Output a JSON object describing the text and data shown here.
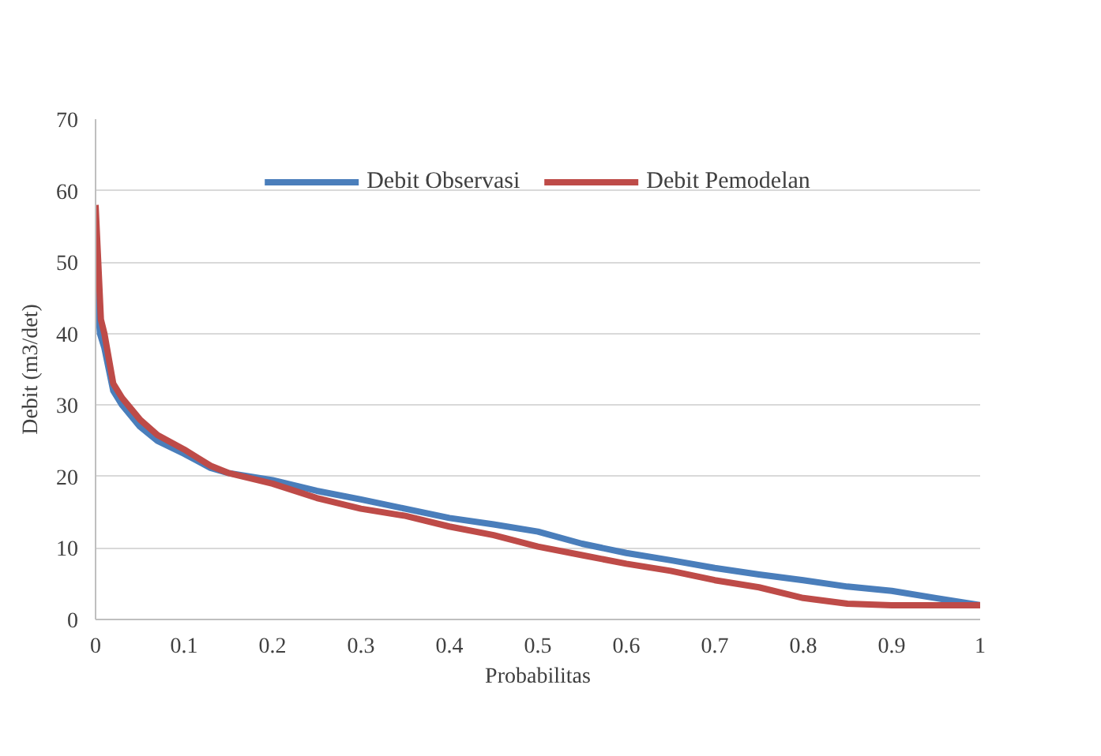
{
  "chart_data": {
    "type": "line",
    "xlabel": "Probabilitas",
    "ylabel": "Debit (m3/det)",
    "xlim": [
      0,
      1
    ],
    "xticks": [
      0,
      0.1,
      0.2,
      0.3,
      0.4,
      0.5,
      0.6,
      0.7,
      0.8,
      0.9,
      1
    ],
    "ylim": [
      0,
      70
    ],
    "yticks": [
      0,
      10,
      20,
      30,
      40,
      50,
      60,
      70
    ],
    "grid": "y",
    "legend": "top",
    "marker": "none",
    "line_style": "solid",
    "series": [
      {
        "name": "Debit Observasi",
        "color": "#4a7ebb",
        "x": [
          0,
          0.002,
          0.005,
          0.01,
          0.02,
          0.03,
          0.05,
          0.07,
          0.1,
          0.13,
          0.15,
          0.2,
          0.25,
          0.3,
          0.35,
          0.4,
          0.45,
          0.5,
          0.55,
          0.6,
          0.65,
          0.7,
          0.75,
          0.8,
          0.85,
          0.9,
          0.95,
          1
        ],
        "values": [
          50,
          45,
          40,
          38,
          32,
          30,
          27,
          25,
          23.2,
          21.2,
          20.5,
          19.5,
          18,
          16.8,
          15.5,
          14.2,
          13.3,
          12.3,
          10.6,
          9.3,
          8.3,
          7.2,
          6.3,
          5.5,
          4.6,
          4.0,
          3.0,
          2.0
        ]
      },
      {
        "name": "Debit Pemodelan",
        "color": "#be4b48",
        "x": [
          0,
          0.003,
          0.006,
          0.01,
          0.02,
          0.03,
          0.05,
          0.07,
          0.1,
          0.13,
          0.15,
          0.2,
          0.25,
          0.3,
          0.35,
          0.4,
          0.45,
          0.5,
          0.55,
          0.6,
          0.65,
          0.7,
          0.75,
          0.8,
          0.85,
          0.9,
          0.95,
          1
        ],
        "values": [
          58,
          50,
          42,
          40,
          33,
          31,
          28,
          25.8,
          23.8,
          21.5,
          20.5,
          19,
          17,
          15.5,
          14.5,
          13,
          11.8,
          10.2,
          9,
          7.8,
          6.8,
          5.5,
          4.5,
          3,
          2.2,
          2,
          2,
          2
        ]
      }
    ]
  }
}
